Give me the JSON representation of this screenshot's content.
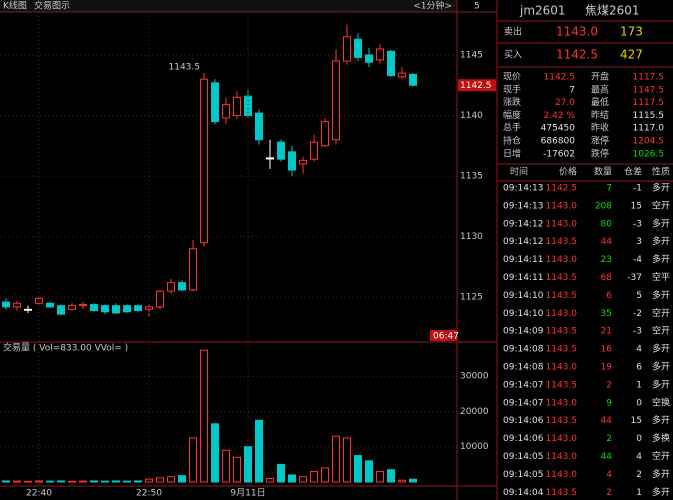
{
  "toolbar": {
    "kline": "K线图",
    "trade": "交易图示",
    "period": "<1分钟>",
    "count": "5"
  },
  "chart_data": [
    {
      "type": "candlestick",
      "up_color": "#ff3232",
      "down_color": "#00c8c8",
      "doji_color": "#ffffff",
      "grid": true,
      "open": [
        1124.6,
        1124.2,
        1124.0,
        1124.5,
        1124.5,
        1124.3,
        1124.0,
        1124.3,
        1124.4,
        1124.3,
        1124.3,
        1124.3,
        1124.3,
        1124.0,
        1124.2,
        1125.5,
        1126.2,
        1125.6,
        1129.5,
        1142.7,
        1139.8,
        1140.0,
        1141.6,
        1140.2,
        1136.5,
        1137.8,
        1137.0,
        1136.0,
        1136.4,
        1137.5,
        1138.0,
        1144.5,
        1146.3,
        1145.0,
        1144.6,
        1145.3,
        1143.2,
        1143.4
      ],
      "high": [
        1124.9,
        1124.7,
        1124.3,
        1125.0,
        1124.6,
        1124.4,
        1124.5,
        1124.6,
        1124.5,
        1124.4,
        1124.5,
        1124.4,
        1124.4,
        1124.4,
        1125.6,
        1126.5,
        1126.4,
        1129.7,
        1143.5,
        1143.0,
        1141.5,
        1142.0,
        1142.1,
        1140.5,
        1138.0,
        1138.0,
        1137.5,
        1136.6,
        1138.4,
        1139.8,
        1145.5,
        1147.5,
        1146.8,
        1145.6,
        1145.9,
        1145.4,
        1144.0,
        1143.5
      ],
      "low": [
        1124.0,
        1123.9,
        1123.7,
        1124.3,
        1124.1,
        1123.5,
        1123.9,
        1124.0,
        1123.8,
        1123.6,
        1123.6,
        1123.7,
        1123.8,
        1123.4,
        1124.0,
        1125.3,
        1125.5,
        1125.5,
        1129.2,
        1139.3,
        1139.3,
        1139.7,
        1139.8,
        1137.6,
        1135.6,
        1136.2,
        1135.0,
        1135.2,
        1136.2,
        1137.4,
        1137.6,
        1144.2,
        1144.5,
        1144.0,
        1144.3,
        1143.2,
        1143.0,
        1142.4
      ],
      "close": [
        1124.2,
        1124.5,
        1124.0,
        1124.9,
        1124.2,
        1123.6,
        1124.3,
        1124.4,
        1123.9,
        1123.8,
        1123.7,
        1123.8,
        1123.9,
        1124.2,
        1125.5,
        1126.2,
        1125.6,
        1129.0,
        1143.0,
        1139.5,
        1140.9,
        1141.5,
        1140.0,
        1138.0,
        1136.5,
        1136.4,
        1135.5,
        1136.3,
        1137.8,
        1139.5,
        1144.5,
        1146.5,
        1144.8,
        1144.4,
        1145.5,
        1143.3,
        1143.5,
        1142.5
      ],
      "ylim": [
        1121.3,
        1148.55
      ],
      "yticks": [
        1125,
        1130,
        1135,
        1140,
        1145
      ],
      "peak_label": "1143.5",
      "last_price_label": "1142.5",
      "time_label": "06:47"
    },
    {
      "type": "bar",
      "title": "交易量 ( Vol=833.00  VVol= )",
      "grid": true,
      "categories": [
        null,
        null,
        null,
        "22:40",
        null,
        null,
        null,
        null,
        null,
        null,
        null,
        null,
        null,
        "22:50",
        null,
        null,
        null,
        null,
        null,
        null,
        null,
        null,
        "9月11日",
        null,
        null,
        null,
        null,
        null,
        null,
        null,
        null,
        null,
        null,
        null,
        null,
        null,
        null,
        null
      ],
      "values": [
        300,
        250,
        200,
        300,
        250,
        300,
        200,
        250,
        300,
        250,
        300,
        250,
        300,
        800,
        1200,
        1500,
        1800,
        12500,
        37400,
        16500,
        9000,
        7000,
        10000,
        17500,
        1000,
        5000,
        2000,
        1500,
        3000,
        4000,
        13000,
        12500,
        7500,
        6000,
        3000,
        3500,
        500,
        800
      ],
      "ylim": [
        0,
        38000
      ],
      "yticks": [
        10000,
        20000,
        30000
      ]
    }
  ],
  "quote_panel": {
    "code": "jm2601",
    "name": "焦煤2601",
    "sell": {
      "label": "卖出",
      "price": "1143.0",
      "qty": "173"
    },
    "buy": {
      "label": "买入",
      "price": "1142.5",
      "qty": "427"
    },
    "stats": [
      [
        "现价",
        "1142.5",
        "开盘",
        "1117.5"
      ],
      [
        "现手",
        "7",
        "最高",
        "1147.5"
      ],
      [
        "涨跌",
        "27.0",
        "最低",
        "1117.5"
      ],
      [
        "幅度",
        "2.42 %",
        "昨结",
        "1115.5"
      ],
      [
        "总手",
        "475450",
        "昨收",
        "1117.0"
      ],
      [
        "持仓",
        "686800",
        "涨停",
        "1204.5"
      ],
      [
        "日增",
        "-17602",
        "跌停",
        "1026.5"
      ]
    ],
    "stats_colors": [
      [
        "#ff3232",
        "#ff3232"
      ],
      [
        "#e0e0e0",
        "#ff3232"
      ],
      [
        "#ff3232",
        "#ff3232"
      ],
      [
        "#ff3232",
        "#e0e0e0"
      ],
      [
        "#e0e0e0",
        "#e0e0e0"
      ],
      [
        "#e0e0e0",
        "#ff3232"
      ],
      [
        "#e0e0e0",
        "#00e000"
      ]
    ],
    "trades": {
      "header": [
        "时间",
        "价格",
        "数量",
        "仓差",
        "性质"
      ],
      "rows": [
        [
          "09:14:13",
          "1142.5",
          "7",
          "-1",
          "多开"
        ],
        [
          "09:14:13",
          "1143.0",
          "208",
          "15",
          "空开"
        ],
        [
          "09:14:12",
          "1143.0",
          "80",
          "-3",
          "多开"
        ],
        [
          "09:14:12",
          "1143.5",
          "44",
          "3",
          "多开"
        ],
        [
          "09:14:11",
          "1143.0",
          "23",
          "-4",
          "多开"
        ],
        [
          "09:14:11",
          "1143.5",
          "68",
          "-37",
          "空平"
        ],
        [
          "09:14:10",
          "1143.5",
          "6",
          "5",
          "多开"
        ],
        [
          "09:14:10",
          "1143.0",
          "35",
          "-2",
          "空开"
        ],
        [
          "09:14:09",
          "1143.5",
          "21",
          "-3",
          "空开"
        ],
        [
          "09:14:08",
          "1143.5",
          "16",
          "4",
          "多开"
        ],
        [
          "09:14:08",
          "1143.0",
          "19",
          "6",
          "多开"
        ],
        [
          "09:14:07",
          "1143.5",
          "2",
          "1",
          "多开"
        ],
        [
          "09:14:07",
          "1143.0",
          "9",
          "0",
          "空换"
        ],
        [
          "09:14:06",
          "1143.5",
          "44",
          "15",
          "多开"
        ],
        [
          "09:14:06",
          "1143.0",
          "2",
          "0",
          "多换"
        ],
        [
          "09:14:05",
          "1143.0",
          "44",
          "4",
          "空开"
        ],
        [
          "09:14:05",
          "1143.0",
          "4",
          "2",
          "多开"
        ],
        [
          "09:14:04",
          "1143.5",
          "2",
          "1",
          "多开"
        ]
      ],
      "qty_colors": [
        "#00e000",
        "#00e000",
        "#00e000",
        "#ff3232",
        "#00e000",
        "#ff3232",
        "#ff3232",
        "#00e000",
        "#ff3232",
        "#ff3232",
        "#ff3232",
        "#ff3232",
        "#00e000",
        "#ff3232",
        "#00e000",
        "#00e000",
        "#ff3232",
        "#ff3232"
      ]
    }
  }
}
